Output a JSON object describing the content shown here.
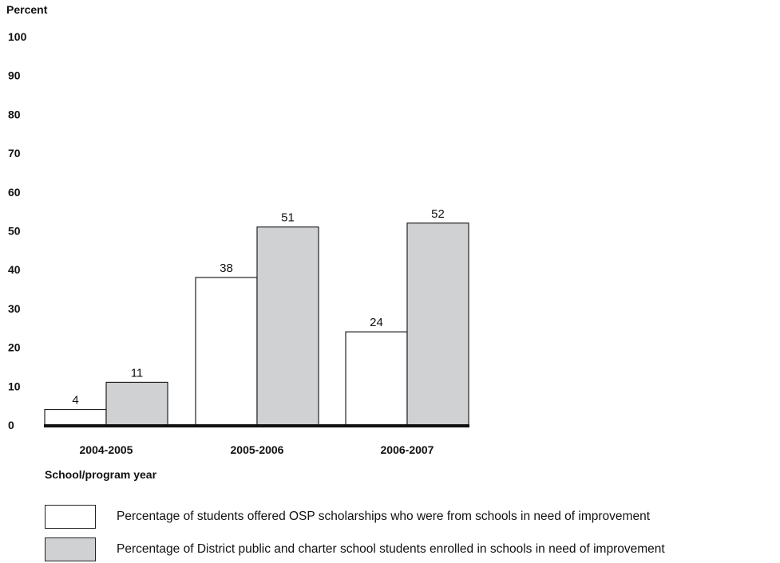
{
  "chart_data": {
    "type": "bar",
    "ylabel": "Percent",
    "xlabel": "School/program year",
    "ylim": [
      0,
      100
    ],
    "yticks": [
      0,
      10,
      20,
      30,
      40,
      50,
      60,
      70,
      80,
      90,
      100
    ],
    "categories": [
      "2004-2005",
      "2005-2006",
      "2006-2007"
    ],
    "series": [
      {
        "name": "Percentage of students offered OSP scholarships who were from schools in need of improvement",
        "color": "#ffffff",
        "values": [
          4,
          38,
          24
        ]
      },
      {
        "name": "Percentage of District public and charter school students enrolled in schools in need of improvement",
        "color": "#d0d1d3",
        "values": [
          11,
          51,
          52
        ]
      }
    ],
    "grid": false,
    "legend_position": "bottom-left"
  }
}
